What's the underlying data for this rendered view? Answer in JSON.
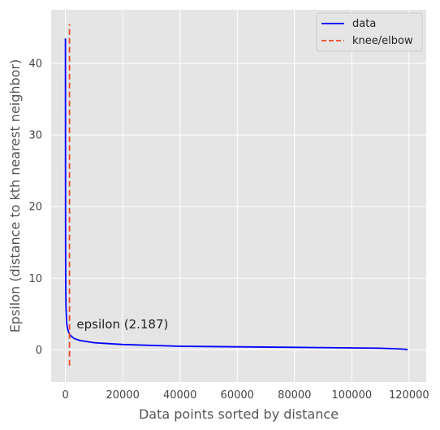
{
  "chart_data": {
    "type": "line",
    "title": "",
    "xlabel": "Data points sorted by distance",
    "ylabel": "Epsilon (distance to kth nearest neighbor)",
    "xlim": [
      -5000,
      126000
    ],
    "ylim": [
      -4.5,
      47.5
    ],
    "xticks": [
      0,
      20000,
      40000,
      60000,
      80000,
      100000,
      120000
    ],
    "xtick_labels": [
      "0",
      "20000",
      "40000",
      "60000",
      "80000",
      "100000",
      "120000"
    ],
    "yticks": [
      0,
      10,
      20,
      30,
      40
    ],
    "ytick_labels": [
      "0",
      "10",
      "20",
      "30",
      "40"
    ],
    "grid": true,
    "legend_position": "top-right",
    "series": [
      {
        "name": "data",
        "style": "solid",
        "color": "#0000ff",
        "x": [
          0,
          20,
          50,
          100,
          200,
          300,
          400,
          500,
          700,
          1000,
          1300,
          1600,
          2000,
          3000,
          5000,
          10000,
          20000,
          40000,
          60000,
          80000,
          100000,
          110000,
          115000,
          118000,
          119000,
          119500
        ],
        "y": [
          43.5,
          25,
          14,
          9,
          6,
          4.8,
          4.0,
          3.5,
          3.0,
          2.6,
          2.3,
          2.1,
          1.9,
          1.6,
          1.3,
          1.0,
          0.75,
          0.5,
          0.42,
          0.35,
          0.27,
          0.22,
          0.15,
          0.1,
          0.06,
          0.0
        ]
      },
      {
        "name": "knee/elbow",
        "style": "dashed",
        "color": "#ee4422",
        "x": [
          1400,
          1400
        ],
        "y": [
          -2.2,
          45.5
        ]
      }
    ],
    "annotations": [
      {
        "text": "epsilon (2.187)",
        "x": 3900,
        "y": 3.0
      }
    ]
  }
}
